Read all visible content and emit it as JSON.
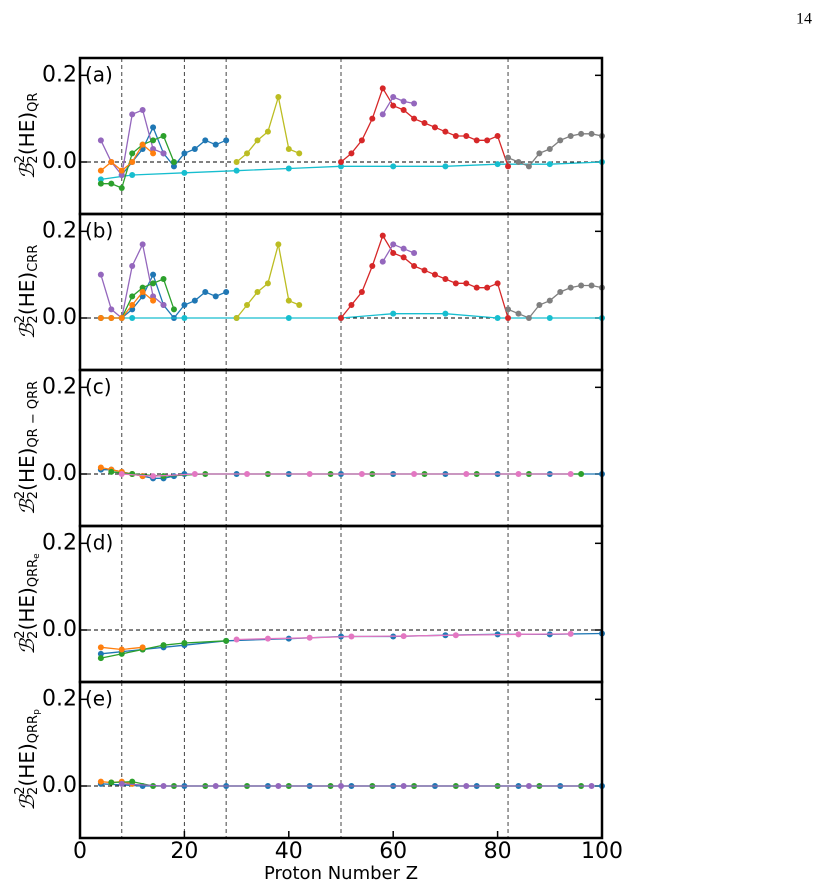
{
  "page_number": "14",
  "chart_data": [
    {
      "type": "line",
      "panel_label": "(a)",
      "ylabel": {
        "symbol": "ℬ",
        "sup": "2",
        "sub": "2",
        "body": "(HE)",
        "index": "QR"
      },
      "xlim": [
        0,
        100
      ],
      "ylim": [
        -0.12,
        0.24
      ],
      "yticks": [
        {
          "value": 0,
          "label": "0.0"
        },
        0.2
      ],
      "reference_line": 0,
      "vlines": [
        8,
        20,
        28,
        50,
        82
      ],
      "series": [
        {
          "color": "#1f77b4",
          "x": [
            8,
            10,
            12,
            14,
            16,
            18,
            20,
            22,
            24,
            26,
            28
          ],
          "values": [
            -0.03,
            0.0,
            0.03,
            0.08,
            0.02,
            -0.01,
            0.02,
            0.03,
            0.05,
            0.04,
            0.05
          ]
        },
        {
          "color": "#17becf",
          "x": [
            4,
            10,
            20,
            30,
            40,
            50,
            60,
            70,
            80,
            90,
            100
          ],
          "values": [
            -0.04,
            -0.03,
            -0.025,
            -0.02,
            -0.015,
            -0.01,
            -0.01,
            -0.01,
            -0.005,
            -0.005,
            0.0
          ]
        },
        {
          "color": "#d62728",
          "x": [
            50,
            52,
            54,
            56,
            58,
            60,
            62,
            64,
            66,
            68,
            70,
            72,
            74,
            76,
            78,
            80,
            82
          ],
          "values": [
            0.0,
            0.02,
            0.05,
            0.1,
            0.17,
            0.13,
            0.12,
            0.1,
            0.09,
            0.08,
            0.07,
            0.06,
            0.06,
            0.05,
            0.05,
            0.06,
            -0.01
          ]
        },
        {
          "color": "#bcbd22",
          "x": [
            30,
            32,
            34,
            36,
            38,
            40,
            42
          ],
          "values": [
            0.0,
            0.02,
            0.05,
            0.07,
            0.15,
            0.03,
            0.02
          ]
        },
        {
          "color": "#9467bd",
          "x": [
            4,
            6,
            8,
            10,
            12,
            14,
            16
          ],
          "values": [
            0.05,
            0.0,
            -0.03,
            0.11,
            0.12,
            0.03,
            0.02
          ]
        },
        {
          "color": "#9467bd",
          "x": [
            58,
            60,
            62,
            64
          ],
          "values": [
            0.11,
            0.15,
            0.14,
            0.135
          ]
        },
        {
          "color": "#2ca02c",
          "x": [
            4,
            6,
            8,
            10,
            12,
            14,
            16,
            18
          ],
          "values": [
            -0.05,
            -0.05,
            -0.06,
            0.02,
            0.04,
            0.05,
            0.06,
            0.0
          ]
        },
        {
          "color": "#7f7f7f",
          "x": [
            82,
            84,
            86,
            88,
            90,
            92,
            94,
            96,
            98,
            100
          ],
          "values": [
            0.01,
            0.0,
            -0.01,
            0.02,
            0.03,
            0.05,
            0.06,
            0.065,
            0.065,
            0.06
          ]
        },
        {
          "color": "#ff7f0e",
          "x": [
            4,
            6,
            8,
            10,
            12,
            14
          ],
          "values": [
            -0.02,
            0.0,
            -0.02,
            0.0,
            0.04,
            0.02
          ]
        }
      ]
    },
    {
      "type": "line",
      "panel_label": "(b)",
      "ylabel": {
        "symbol": "ℬ",
        "sup": "2",
        "sub": "2",
        "body": "(HE)",
        "index": "CRR"
      },
      "xlim": [
        0,
        100
      ],
      "ylim": [
        -0.12,
        0.24
      ],
      "yticks": [
        {
          "value": 0,
          "label": "0.0"
        },
        0.2
      ],
      "reference_line": 0,
      "vlines": [
        8,
        20,
        28,
        50,
        82
      ],
      "series": [
        {
          "color": "#1f77b4",
          "x": [
            8,
            10,
            12,
            14,
            16,
            18,
            20,
            22,
            24,
            26,
            28
          ],
          "values": [
            0,
            0.02,
            0.05,
            0.1,
            0.03,
            0,
            0.03,
            0.04,
            0.06,
            0.05,
            0.06
          ]
        },
        {
          "color": "#17becf",
          "x": [
            4,
            10,
            20,
            30,
            40,
            50,
            60,
            70,
            80,
            90,
            100
          ],
          "values": [
            0,
            0,
            0,
            0,
            0,
            0,
            0.01,
            0.01,
            0.0,
            0.0,
            0.0
          ]
        },
        {
          "color": "#d62728",
          "x": [
            50,
            52,
            54,
            56,
            58,
            60,
            62,
            64,
            66,
            68,
            70,
            72,
            74,
            76,
            78,
            80,
            82
          ],
          "values": [
            0.0,
            0.03,
            0.06,
            0.12,
            0.19,
            0.15,
            0.14,
            0.12,
            0.11,
            0.1,
            0.09,
            0.08,
            0.08,
            0.07,
            0.07,
            0.08,
            0.0
          ]
        },
        {
          "color": "#bcbd22",
          "x": [
            30,
            32,
            34,
            36,
            38,
            40,
            42
          ],
          "values": [
            0.0,
            0.03,
            0.06,
            0.08,
            0.17,
            0.04,
            0.03
          ]
        },
        {
          "color": "#9467bd",
          "x": [
            4,
            6,
            8,
            10,
            12,
            14,
            16
          ],
          "values": [
            0.1,
            0.02,
            0.0,
            0.12,
            0.17,
            0.05,
            0.03
          ]
        },
        {
          "color": "#9467bd",
          "x": [
            58,
            60,
            62,
            64
          ],
          "values": [
            0.13,
            0.17,
            0.16,
            0.15
          ]
        },
        {
          "color": "#2ca02c",
          "x": [
            4,
            6,
            8,
            10,
            12,
            14,
            16,
            18
          ],
          "values": [
            0,
            0,
            0,
            0.05,
            0.07,
            0.08,
            0.09,
            0.02
          ]
        },
        {
          "color": "#7f7f7f",
          "x": [
            82,
            84,
            86,
            88,
            90,
            92,
            94,
            96,
            98,
            100
          ],
          "values": [
            0.02,
            0.01,
            0.0,
            0.03,
            0.04,
            0.06,
            0.07,
            0.075,
            0.075,
            0.07
          ]
        },
        {
          "color": "#ff7f0e",
          "x": [
            4,
            6,
            8,
            10,
            12,
            14
          ],
          "values": [
            0,
            0.0,
            0.0,
            0.03,
            0.06,
            0.04
          ]
        }
      ]
    },
    {
      "type": "line",
      "panel_label": "(c)",
      "ylabel": {
        "symbol": "ℬ",
        "sup": "2",
        "sub": "2",
        "body": "(HE)",
        "index": "QR − QRR"
      },
      "xlim": [
        0,
        100
      ],
      "ylim": [
        -0.12,
        0.24
      ],
      "yticks": [
        {
          "value": 0,
          "label": "0.0"
        },
        0.2
      ],
      "reference_line": 0,
      "vlines": [
        8,
        20,
        28,
        50,
        82
      ],
      "series": [
        {
          "color": "#1f77b4",
          "x": [
            4,
            6,
            8,
            10,
            12,
            14,
            16,
            18,
            20,
            30,
            40,
            50,
            60,
            70,
            80,
            90,
            100
          ],
          "values": [
            0.01,
            0.01,
            0.005,
            0.0,
            -0.005,
            -0.01,
            -0.01,
            -0.005,
            0,
            0,
            0,
            0,
            0,
            0,
            0,
            0,
            0
          ]
        },
        {
          "color": "#ff7f0e",
          "x": [
            4,
            6,
            8,
            10,
            12
          ],
          "values": [
            0.015,
            0.01,
            0.005,
            0.0,
            -0.005
          ]
        },
        {
          "color": "#2ca02c",
          "x": [
            6,
            10,
            16,
            24,
            36,
            48,
            56,
            66,
            76,
            86,
            96
          ],
          "values": [
            0.005,
            0.0,
            -0.005,
            0,
            0,
            0,
            0,
            0,
            0,
            0,
            0
          ]
        },
        {
          "color": "#e377c2",
          "x": [
            8,
            14,
            22,
            32,
            44,
            54,
            64,
            74,
            84,
            94
          ],
          "values": [
            0.0,
            -0.005,
            0,
            0,
            0,
            0,
            0,
            0,
            0,
            0
          ]
        }
      ]
    },
    {
      "type": "line",
      "panel_label": "(d)",
      "ylabel": {
        "symbol": "ℬ",
        "sup": "2",
        "sub": "2",
        "body": "(HE)",
        "index": "QRR",
        "index_sub": "e"
      },
      "xlim": [
        0,
        100
      ],
      "ylim": [
        -0.12,
        0.24
      ],
      "yticks": [
        {
          "value": 0,
          "label": "0.0"
        },
        0.2
      ],
      "reference_line": 0,
      "vlines": [
        8,
        20,
        28,
        50,
        82
      ],
      "series": [
        {
          "color": "#1f77b4",
          "x": [
            4,
            8,
            12,
            16,
            20,
            28,
            40,
            50,
            60,
            70,
            80,
            90,
            100
          ],
          "values": [
            -0.055,
            -0.05,
            -0.045,
            -0.04,
            -0.035,
            -0.025,
            -0.02,
            -0.015,
            -0.015,
            -0.012,
            -0.01,
            -0.01,
            -0.008
          ]
        },
        {
          "color": "#2ca02c",
          "x": [
            4,
            8,
            12,
            16,
            20,
            28
          ],
          "values": [
            -0.065,
            -0.055,
            -0.045,
            -0.035,
            -0.03,
            -0.025
          ]
        },
        {
          "color": "#ff7f0e",
          "x": [
            4,
            8,
            12
          ],
          "values": [
            -0.04,
            -0.045,
            -0.04
          ]
        },
        {
          "color": "#e377c2",
          "x": [
            30,
            36,
            44,
            52,
            62,
            72,
            84,
            94
          ],
          "values": [
            -0.022,
            -0.02,
            -0.018,
            -0.015,
            -0.014,
            -0.012,
            -0.01,
            -0.009
          ]
        }
      ]
    },
    {
      "type": "line",
      "panel_label": "(e)",
      "ylabel": {
        "symbol": "ℬ",
        "sup": "2",
        "sub": "2",
        "body": "(HE)",
        "index": "QRR",
        "index_sub": "p"
      },
      "xlim": [
        0,
        100
      ],
      "ylim": [
        -0.12,
        0.24
      ],
      "yticks": [
        {
          "value": 0,
          "label": "0.0"
        },
        0.2
      ],
      "reference_line": 0,
      "vlines": [
        8,
        20,
        28,
        50,
        82
      ],
      "xticks": [
        0,
        20,
        40,
        60,
        80,
        100
      ],
      "xlabel": "Proton Number Z",
      "series": [
        {
          "color": "#1f77b4",
          "x": [
            4,
            12,
            20,
            28,
            36,
            44,
            52,
            60,
            68,
            76,
            84,
            92,
            100
          ],
          "values": [
            0.005,
            0.0,
            0,
            0,
            0,
            0,
            0,
            0,
            0,
            0,
            0,
            0,
            0
          ]
        },
        {
          "color": "#ff7f0e",
          "x": [
            4,
            6,
            8,
            10
          ],
          "values": [
            0.01,
            0.008,
            0.01,
            0.005
          ]
        },
        {
          "color": "#2ca02c",
          "x": [
            6,
            10,
            14,
            18,
            24,
            32,
            40,
            48,
            56,
            64,
            72,
            80,
            88,
            96
          ],
          "values": [
            0.008,
            0.01,
            0.0,
            0,
            0,
            0,
            0,
            0,
            0,
            0,
            0,
            0,
            0,
            0
          ]
        },
        {
          "color": "#9467bd",
          "x": [
            8,
            16,
            26,
            38,
            50,
            62,
            74,
            86,
            98
          ],
          "values": [
            0.005,
            0,
            0,
            0,
            0,
            0,
            0,
            0,
            0
          ]
        }
      ]
    }
  ]
}
